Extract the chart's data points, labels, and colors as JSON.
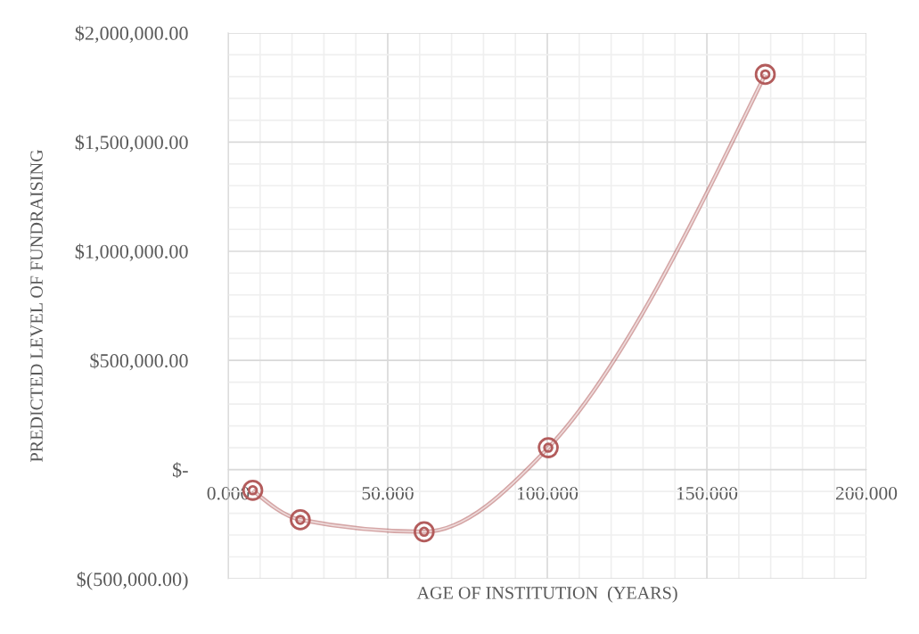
{
  "chart_data": {
    "type": "line",
    "xlabel": "AGE OF INSTITUTION  (YEARS)",
    "ylabel": "PREDICTED LEVEL OF FUNDRAISING",
    "x": [
      7.7,
      22.6,
      61.4,
      100.3,
      168.3
    ],
    "series": [
      {
        "color": "#b35c5c",
        "values": [
          -95000,
          -230000,
          -285000,
          100000,
          1810000
        ]
      }
    ],
    "xlim": [
      0,
      200
    ],
    "xticks": [
      {
        "value": 0,
        "label": "0.000"
      },
      {
        "value": 10,
        "label": null
      },
      {
        "value": 20,
        "label": null
      },
      {
        "value": 30,
        "label": null
      },
      {
        "value": 40,
        "label": null
      },
      {
        "value": 50,
        "label": "50.000"
      },
      {
        "value": 60,
        "label": null
      },
      {
        "value": 70,
        "label": null
      },
      {
        "value": 80,
        "label": null
      },
      {
        "value": 90,
        "label": null
      },
      {
        "value": 100,
        "label": "100.000"
      },
      {
        "value": 110,
        "label": null
      },
      {
        "value": 120,
        "label": null
      },
      {
        "value": 130,
        "label": null
      },
      {
        "value": 140,
        "label": null
      },
      {
        "value": 150,
        "label": "150.000"
      },
      {
        "value": 160,
        "label": null
      },
      {
        "value": 170,
        "label": null
      },
      {
        "value": 180,
        "label": null
      },
      {
        "value": 190,
        "label": null
      },
      {
        "value": 200,
        "label": "200.000"
      }
    ],
    "ylim": [
      -500000,
      2000000
    ],
    "yticks": [
      {
        "value": -500000,
        "label": "$(500,000.00)"
      },
      {
        "value": -400000,
        "label": null
      },
      {
        "value": -300000,
        "label": null
      },
      {
        "value": -200000,
        "label": null
      },
      {
        "value": -100000,
        "label": null
      },
      {
        "value": 0,
        "label": "$-"
      },
      {
        "value": 100000,
        "label": null
      },
      {
        "value": 200000,
        "label": null
      },
      {
        "value": 300000,
        "label": null
      },
      {
        "value": 400000,
        "label": null
      },
      {
        "value": 500000,
        "label": "$500,000.00"
      },
      {
        "value": 600000,
        "label": null
      },
      {
        "value": 700000,
        "label": null
      },
      {
        "value": 800000,
        "label": null
      },
      {
        "value": 900000,
        "label": null
      },
      {
        "value": 1000000,
        "label": "$1,000,000.00"
      },
      {
        "value": 1100000,
        "label": null
      },
      {
        "value": 1200000,
        "label": null
      },
      {
        "value": 1300000,
        "label": null
      },
      {
        "value": 1400000,
        "label": null
      },
      {
        "value": 1500000,
        "label": "$1,500,000.00"
      },
      {
        "value": 1600000,
        "label": null
      },
      {
        "value": 1700000,
        "label": null
      },
      {
        "value": 1800000,
        "label": null
      },
      {
        "value": 1900000,
        "label": null
      },
      {
        "value": 2000000,
        "label": "$2,000,000.00"
      }
    ],
    "grid": true,
    "marker": "circle",
    "line_style": "solid"
  }
}
